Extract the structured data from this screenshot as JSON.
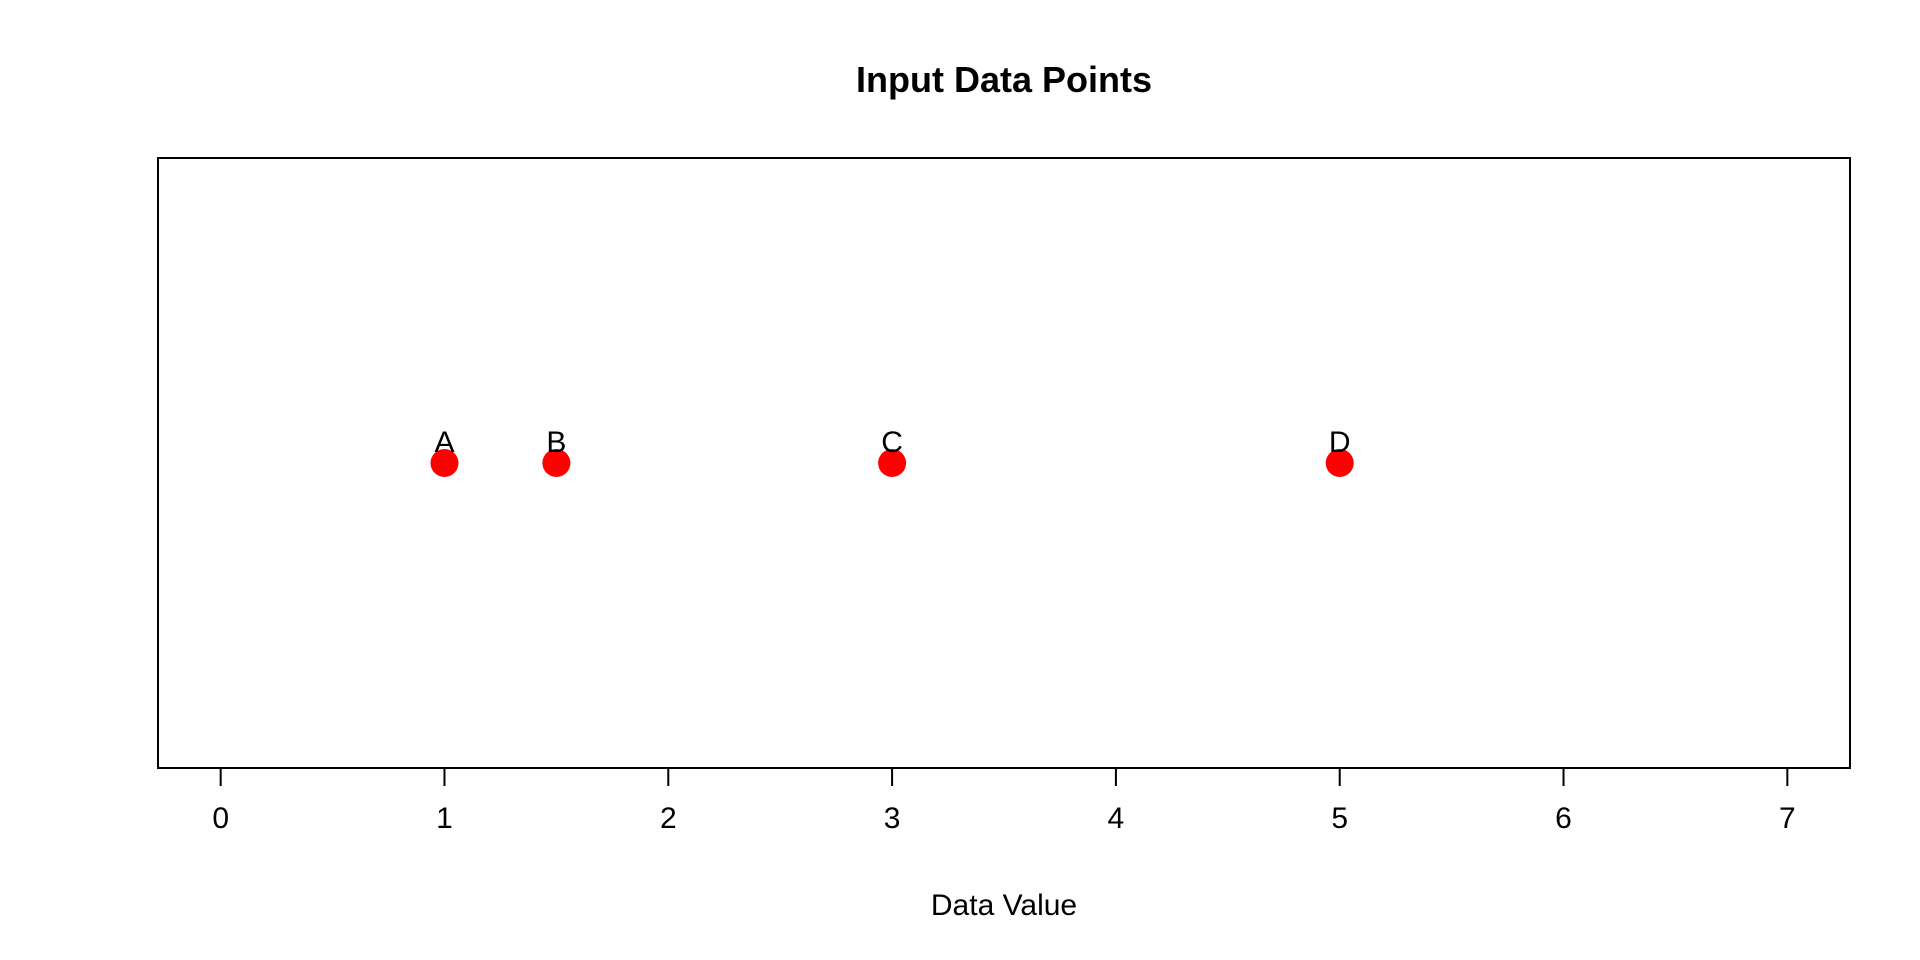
{
  "chart_data": {
    "type": "scatter",
    "title": "Input Data Points",
    "xlabel": "Data Value",
    "ylabel": "",
    "xlim": [
      -0.28,
      7.28
    ],
    "ylim": [
      -1,
      1
    ],
    "x_ticks": [
      0,
      1,
      2,
      3,
      4,
      5,
      6,
      7
    ],
    "grid": false,
    "legend": "none",
    "point_color": "#ff0000",
    "points": [
      {
        "label": "A",
        "x": 1,
        "y": 0
      },
      {
        "label": "B",
        "x": 1.5,
        "y": 0
      },
      {
        "label": "C",
        "x": 3,
        "y": 0
      },
      {
        "label": "D",
        "x": 5,
        "y": 0
      }
    ]
  }
}
